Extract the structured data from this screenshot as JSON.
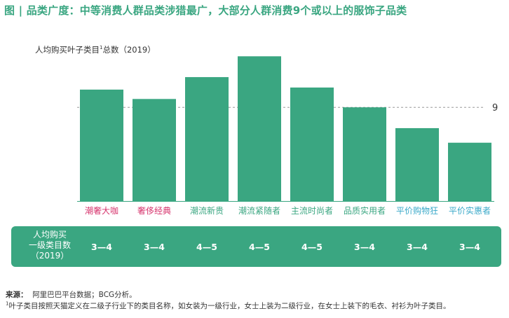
{
  "title": "图 | 品类广度：中等消费人群品类涉猎最广，大部分人群消费9个或以上的服饰子品类",
  "chart_data": {
    "type": "bar",
    "ylabel": "人均购买叶子类目",
    "ylabel_sup": "1",
    "ylabel_tail": "总数（2019）",
    "categories": [
      "潮奢大咖",
      "奢侈经典",
      "潮流新贵",
      "潮流紧随者",
      "主流时尚者",
      "品质实用者",
      "平价购物狂",
      "平价实惠者"
    ],
    "category_colors": [
      "#d6336c",
      "#d6336c",
      "#3aa681",
      "#3aa681",
      "#3aa681",
      "#3aa681",
      "#3aa9c9",
      "#3aa9c9"
    ],
    "values": [
      10.7,
      9.8,
      11.9,
      13.9,
      10.9,
      9.0,
      7.0,
      5.6
    ],
    "reference_line": {
      "value": 9,
      "label": "9"
    },
    "ylim": [
      0,
      15
    ],
    "bar_color": "#3aa681",
    "range_row": {
      "label": "人均购买\n一级类目数\n（2019）",
      "values": [
        "3—4",
        "3—4",
        "4—5",
        "4—5",
        "4—5",
        "3—4",
        "3—4",
        "3—4"
      ]
    }
  },
  "footer": {
    "source_label": "来源：",
    "source_text": "阿里巴巴平台数据；BCG分析。",
    "note_sup": "1",
    "note_text": "叶子类目按照天猫定义在二级子行业下的类目名称，如女装为一级行业，女士上装为二级行业，在女士上装下的毛衣、衬衫为叶子类目。"
  }
}
